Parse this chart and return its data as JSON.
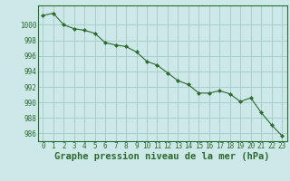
{
  "x": [
    0,
    1,
    2,
    3,
    4,
    5,
    6,
    7,
    8,
    9,
    10,
    11,
    12,
    13,
    14,
    15,
    16,
    17,
    18,
    19,
    20,
    21,
    22,
    23
  ],
  "y": [
    1001.2,
    1001.5,
    1000.0,
    999.5,
    999.3,
    998.9,
    997.7,
    997.4,
    997.2,
    996.5,
    995.3,
    994.8,
    993.8,
    992.8,
    992.3,
    991.2,
    991.2,
    991.5,
    991.1,
    990.1,
    990.6,
    988.7,
    987.1,
    985.7
  ],
  "line_color": "#2d6a2d",
  "marker_color": "#2d6a2d",
  "bg_color": "#cce8e8",
  "grid_color": "#a8cccc",
  "xlabel": "Graphe pression niveau de la mer (hPa)",
  "ylim": [
    985.0,
    1002.5
  ],
  "xlim": [
    -0.5,
    23.5
  ],
  "yticks": [
    986,
    988,
    990,
    992,
    994,
    996,
    998,
    1000
  ],
  "xticks": [
    0,
    1,
    2,
    3,
    4,
    5,
    6,
    7,
    8,
    9,
    10,
    11,
    12,
    13,
    14,
    15,
    16,
    17,
    18,
    19,
    20,
    21,
    22,
    23
  ],
  "tick_label_fontsize": 5.5,
  "xlabel_fontsize": 7.5,
  "xlabel_fontweight": "bold"
}
